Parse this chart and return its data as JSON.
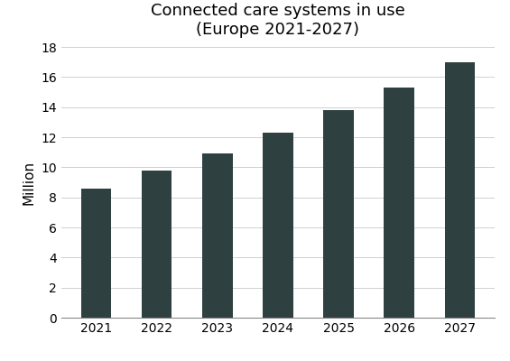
{
  "title_line1": "Connected care systems in use",
  "title_line2": "(Europe 2021-2027)",
  "categories": [
    2021,
    2022,
    2023,
    2024,
    2025,
    2026,
    2027
  ],
  "values": [
    8.6,
    9.8,
    10.9,
    12.3,
    13.8,
    15.3,
    17.0
  ],
  "bar_color": "#2e4040",
  "ylabel": "Million",
  "ylim": [
    0,
    18
  ],
  "yticks": [
    0,
    2,
    4,
    6,
    8,
    10,
    12,
    14,
    16,
    18
  ],
  "background_color": "#ffffff",
  "grid_color": "#d0d0d0",
  "title_fontsize": 13,
  "axis_label_fontsize": 11,
  "tick_fontsize": 10,
  "bar_width": 0.5
}
